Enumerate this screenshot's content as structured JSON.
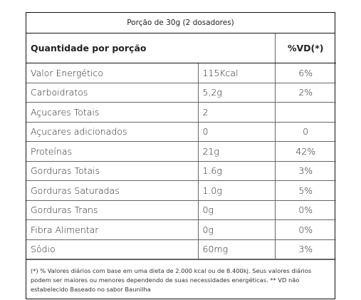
{
  "table": {
    "title": "Porção de 30g (2 dosadores)",
    "header": [
      "Quantidade por porção",
      "%VD(*)"
    ],
    "rows": [
      [
        "Valor Energético",
        "115Kcal",
        "6%"
      ],
      [
        "Carboidratos",
        "5,2g",
        "2%"
      ],
      [
        "Açucares Totais",
        "2"
      ],
      [
        "Açucares adicionados",
        "0",
        "0"
      ],
      [
        "Proteínas",
        "21g",
        "42%"
      ],
      [
        "Gorduras Totais",
        "1.6g",
        "3%"
      ],
      [
        "Gorduras Saturadas",
        "1.0g",
        "5%"
      ],
      [
        "Gorduras Trans",
        "0g",
        "0%"
      ],
      [
        "Fibra Alimentar",
        "0g",
        "0%"
      ],
      [
        "Sódio",
        "60mg",
        "3%"
      ]
    ],
    "footnote": "(*) % Valores diários com base em uma dieta de 2.000 kcal ou de 8.400kj. Seus valores diários podem ser maiores ou menores dependendo de suas necessidades energéticas. ** VD não estabelecido Baseado no sabor Baunilha"
  }
}
